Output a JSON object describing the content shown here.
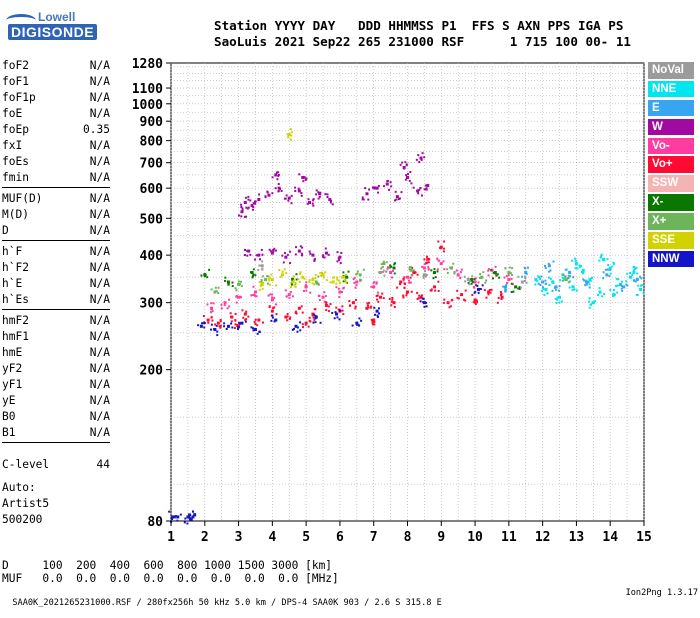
{
  "logo": {
    "line1": "Lowell",
    "line2": "DIGISONDE"
  },
  "header": {
    "line1": "Station YYYY DAY   DDD HHMMSS P1  FFS S AXN PPS IGA PS",
    "line2": "SaoLuis 2021 Sep22 265 231000 RSF      1 715 100 00- 11"
  },
  "params_groups": [
    [
      {
        "name": "foF2",
        "value": "N/A"
      },
      {
        "name": "foF1",
        "value": "N/A"
      },
      {
        "name": "foF1p",
        "value": "N/A"
      },
      {
        "name": "foE",
        "value": "N/A"
      },
      {
        "name": "foEp",
        "value": "0.35"
      },
      {
        "name": "fxI",
        "value": "N/A"
      },
      {
        "name": "foEs",
        "value": "N/A"
      },
      {
        "name": "fmin",
        "value": "N/A"
      }
    ],
    [
      {
        "name": "MUF(D)",
        "value": "N/A"
      },
      {
        "name": "M(D)",
        "value": "N/A"
      },
      {
        "name": "D",
        "value": "N/A"
      }
    ],
    [
      {
        "name": "h`F",
        "value": "N/A"
      },
      {
        "name": "h`F2",
        "value": "N/A"
      },
      {
        "name": "h`E",
        "value": "N/A"
      },
      {
        "name": "h`Es",
        "value": "N/A"
      }
    ],
    [
      {
        "name": "hmF2",
        "value": "N/A"
      },
      {
        "name": "hmF1",
        "value": "N/A"
      },
      {
        "name": "hmE",
        "value": "N/A"
      },
      {
        "name": "yF2",
        "value": "N/A"
      },
      {
        "name": "yF1",
        "value": "N/A"
      },
      {
        "name": "yE",
        "value": "N/A"
      },
      {
        "name": "B0",
        "value": "N/A"
      },
      {
        "name": "B1",
        "value": "N/A"
      }
    ]
  ],
  "clevel": {
    "name": "C-level",
    "value": "44"
  },
  "auto": {
    "line1": "Auto:",
    "line2": "Artist5",
    "line3": "500200"
  },
  "bottom": {
    "d_line": "D     100  200  400  600  800 1000 1500 3000 [km]",
    "muf_line": "MUF   0.0  0.0  0.0  0.0  0.0  0.0  0.0  0.0 [MHz]"
  },
  "footer": {
    "text": "SAA0K_2021265231000.RSF / 280fx256h 50 kHz 5.0 km / DPS-4 SAA0K 903 / 2.6 S 315.8 E",
    "version": "Ion2Png 1.3.17"
  },
  "chart_data": {
    "type": "scatter",
    "title": "",
    "xlabel": "",
    "ylabel": "",
    "xlim": [
      1,
      15
    ],
    "ylim": [
      80,
      1280
    ],
    "x_ticks": [
      1,
      2,
      3,
      4,
      5,
      6,
      7,
      8,
      9,
      10,
      11,
      12,
      13,
      14,
      15
    ],
    "y_ticks": [
      80,
      200,
      300,
      400,
      500,
      600,
      700,
      800,
      900,
      1000,
      1100,
      1280
    ],
    "y_scale": "log",
    "grid": true,
    "legend_position": "right",
    "legend": [
      {
        "name": "NoVal",
        "color": "#9b9b9b"
      },
      {
        "name": "NNE",
        "color": "#00e5ee"
      },
      {
        "name": "E",
        "color": "#37a5f0"
      },
      {
        "name": "W",
        "color": "#a00aa0"
      },
      {
        "name": "Vo-",
        "color": "#ff3ca0"
      },
      {
        "name": "Vo+",
        "color": "#ff0a32"
      },
      {
        "name": "SSW",
        "color": "#f5b4b4"
      },
      {
        "name": "X-",
        "color": "#0a7800"
      },
      {
        "name": "X+",
        "color": "#6eb45a"
      },
      {
        "name": "SSE",
        "color": "#d2d200"
      },
      {
        "name": "NNW",
        "color": "#1414c8"
      }
    ],
    "series": [
      {
        "name": "NNE",
        "color": "#00e5ee",
        "points": [
          [
            12.3,
            340
          ],
          [
            12.6,
            355
          ],
          [
            12.9,
            330
          ],
          [
            13.2,
            365
          ],
          [
            13.4,
            345
          ],
          [
            13.7,
            320
          ],
          [
            14.0,
            370
          ],
          [
            14.3,
            335
          ],
          [
            14.6,
            350
          ],
          [
            14.9,
            325
          ],
          [
            12.5,
            310
          ],
          [
            13.0,
            380
          ],
          [
            13.5,
            300
          ],
          [
            14.1,
            315
          ],
          [
            14.7,
            360
          ],
          [
            11.8,
            345
          ],
          [
            12.1,
            325
          ],
          [
            13.8,
            390
          ]
        ]
      },
      {
        "name": "E",
        "color": "#37a5f0",
        "points": [
          [
            12.4,
            330
          ],
          [
            12.8,
            360
          ],
          [
            13.3,
            340
          ],
          [
            13.9,
            355
          ],
          [
            14.4,
            330
          ],
          [
            14.8,
            345
          ],
          [
            11.5,
            360
          ],
          [
            12.0,
            340
          ],
          [
            10.9,
            330
          ],
          [
            12.2,
            375
          ]
        ]
      },
      {
        "name": "W",
        "color": "#a00aa0",
        "points": [
          [
            3.2,
            550
          ],
          [
            3.4,
            540
          ],
          [
            3.6,
            560
          ],
          [
            3.9,
            575
          ],
          [
            4.2,
            600
          ],
          [
            4.5,
            565
          ],
          [
            4.8,
            590
          ],
          [
            5.1,
            550
          ],
          [
            5.4,
            580
          ],
          [
            5.7,
            560
          ],
          [
            6.8,
            580
          ],
          [
            7.1,
            600
          ],
          [
            7.4,
            615
          ],
          [
            7.7,
            570
          ],
          [
            8.0,
            640
          ],
          [
            8.3,
            590
          ],
          [
            8.6,
            610
          ],
          [
            3.3,
            410
          ],
          [
            3.6,
            400
          ],
          [
            4.0,
            405
          ],
          [
            4.4,
            395
          ],
          [
            4.8,
            410
          ],
          [
            5.2,
            400
          ],
          [
            5.6,
            405
          ],
          [
            6.0,
            395
          ],
          [
            3.1,
            520
          ],
          [
            7.9,
            680
          ],
          [
            8.4,
            720
          ],
          [
            4.1,
            650
          ],
          [
            4.9,
            640
          ]
        ]
      },
      {
        "name": "Vo-",
        "color": "#ff3ca0",
        "points": [
          [
            2.2,
            290
          ],
          [
            2.6,
            300
          ],
          [
            3.0,
            310
          ],
          [
            3.5,
            320
          ],
          [
            4.0,
            305
          ],
          [
            4.5,
            315
          ],
          [
            5.0,
            330
          ],
          [
            5.5,
            310
          ],
          [
            6.0,
            320
          ],
          [
            6.5,
            340
          ],
          [
            7.0,
            330
          ],
          [
            7.5,
            360
          ],
          [
            8.0,
            350
          ],
          [
            8.5,
            370
          ],
          [
            9.0,
            380
          ],
          [
            9.5,
            355
          ],
          [
            10.0,
            340
          ],
          [
            10.5,
            365
          ],
          [
            11.0,
            345
          ]
        ]
      },
      {
        "name": "Vo+",
        "color": "#ff0a32",
        "points": [
          [
            2.1,
            270
          ],
          [
            2.4,
            265
          ],
          [
            2.8,
            275
          ],
          [
            3.2,
            280
          ],
          [
            3.6,
            270
          ],
          [
            4.0,
            285
          ],
          [
            4.4,
            275
          ],
          [
            4.8,
            290
          ],
          [
            5.2,
            280
          ],
          [
            5.6,
            295
          ],
          [
            6.0,
            285
          ],
          [
            6.4,
            300
          ],
          [
            6.8,
            290
          ],
          [
            7.2,
            310
          ],
          [
            7.6,
            300
          ],
          [
            8.0,
            320
          ],
          [
            8.4,
            310
          ],
          [
            8.8,
            330
          ],
          [
            9.2,
            300
          ],
          [
            9.6,
            315
          ],
          [
            10.0,
            305
          ],
          [
            10.4,
            320
          ],
          [
            10.8,
            310
          ],
          [
            7.8,
            340
          ],
          [
            8.2,
            360
          ],
          [
            8.6,
            390
          ],
          [
            9.0,
            420
          ],
          [
            3.0,
            260
          ],
          [
            5.0,
            265
          ],
          [
            7.0,
            270
          ]
        ]
      },
      {
        "name": "X-",
        "color": "#0a7800",
        "points": [
          [
            2.0,
            355
          ],
          [
            2.7,
            340
          ],
          [
            3.4,
            360
          ],
          [
            6.2,
            350
          ],
          [
            7.6,
            370
          ],
          [
            8.8,
            360
          ],
          [
            9.9,
            345
          ],
          [
            10.6,
            360
          ],
          [
            11.2,
            330
          ],
          [
            4.6,
            345
          ]
        ]
      },
      {
        "name": "X+",
        "color": "#6eb45a",
        "points": [
          [
            2.3,
            320
          ],
          [
            3.0,
            335
          ],
          [
            3.8,
            345
          ],
          [
            5.3,
            340
          ],
          [
            6.6,
            355
          ],
          [
            7.3,
            380
          ],
          [
            8.1,
            365
          ],
          [
            9.3,
            370
          ],
          [
            10.2,
            350
          ],
          [
            11.0,
            360
          ],
          [
            12.7,
            345
          ]
        ]
      },
      {
        "name": "SSE",
        "color": "#d2d200",
        "points": [
          [
            4.0,
            345
          ],
          [
            4.3,
            355
          ],
          [
            4.6,
            340
          ],
          [
            4.9,
            350
          ],
          [
            5.2,
            345
          ],
          [
            5.5,
            355
          ],
          [
            5.8,
            340
          ],
          [
            6.1,
            350
          ],
          [
            3.7,
            335
          ],
          [
            4.5,
            830
          ]
        ]
      },
      {
        "name": "NNW",
        "color": "#1414c8",
        "points": [
          [
            1.05,
            82
          ],
          [
            1.1,
            82
          ],
          [
            1.2,
            82
          ],
          [
            1.5,
            82
          ],
          [
            1.55,
            83
          ],
          [
            1.6,
            81
          ],
          [
            1.65,
            82
          ],
          [
            1.7,
            83
          ],
          [
            1.9,
            260
          ],
          [
            2.3,
            255
          ],
          [
            2.7,
            260
          ],
          [
            3.1,
            265
          ],
          [
            3.5,
            255
          ],
          [
            4.1,
            270
          ],
          [
            4.7,
            260
          ],
          [
            5.3,
            275
          ],
          [
            5.9,
            280
          ],
          [
            6.5,
            265
          ],
          [
            7.1,
            285
          ],
          [
            8.5,
            300
          ],
          [
            10.1,
            325
          ]
        ]
      },
      {
        "name": "NoVal",
        "color": "#9b9b9b",
        "points": [
          [
            7.2,
            360
          ],
          [
            8.5,
            355
          ],
          [
            9.8,
            345
          ],
          [
            11.4,
            340
          ],
          [
            3.7,
            375
          ]
        ]
      }
    ]
  }
}
